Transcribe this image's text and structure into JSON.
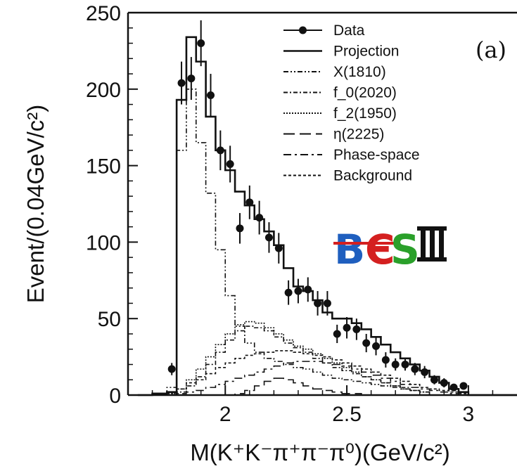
{
  "chart_data": {
    "type": "line",
    "panel_label": "(a)",
    "ylabel": "Event/(0.04GeV/c²)",
    "xlabel": "M(K⁺K⁻π⁺π⁻π⁰)(GeV/c²)",
    "xlim": [
      1.6,
      3.2
    ],
    "ylim": [
      0,
      250
    ],
    "x_ticks": [
      2,
      2.5,
      3
    ],
    "x_tick_labels": [
      "2",
      "2.5",
      "3"
    ],
    "y_ticks": [
      0,
      50,
      100,
      150,
      200,
      250
    ],
    "y_tick_labels": [
      "0",
      "50",
      "100",
      "150",
      "200",
      "250"
    ],
    "bin_width": 0.04,
    "logo": "BESIII",
    "legend": {
      "placement": "top-right",
      "entries": [
        "Data",
        "Projection",
        "X(1810)",
        "f_0(2020)",
        "f_2(1950)",
        "η(2225)",
        "Phase-space",
        "Background"
      ]
    },
    "data_points": {
      "name": "Data",
      "x": [
        1.78,
        1.82,
        1.86,
        1.9,
        1.94,
        1.98,
        2.02,
        2.06,
        2.1,
        2.14,
        2.18,
        2.22,
        2.26,
        2.3,
        2.34,
        2.38,
        2.42,
        2.46,
        2.5,
        2.54,
        2.58,
        2.62,
        2.66,
        2.7,
        2.74,
        2.78,
        2.82,
        2.86,
        2.9,
        2.94,
        2.98
      ],
      "y": [
        17,
        204,
        207,
        230,
        196,
        160,
        151,
        109,
        126,
        116,
        103,
        96,
        67,
        68,
        69,
        60,
        60,
        40,
        44,
        43,
        34,
        32,
        23,
        20,
        20,
        17,
        15,
        10,
        8,
        5,
        6
      ],
      "err": [
        4,
        14,
        14,
        15,
        14,
        13,
        12,
        10,
        11,
        11,
        10,
        10,
        8,
        8,
        8,
        8,
        8,
        6,
        7,
        7,
        6,
        6,
        5,
        4,
        4,
        4,
        4,
        3,
        3,
        2,
        2
      ]
    },
    "series": [
      {
        "name": "Projection",
        "style": "solid",
        "edges": [
          1.64,
          1.7,
          1.76,
          1.8,
          1.84,
          1.88,
          1.92,
          1.96,
          2.0,
          2.04,
          2.08,
          2.12,
          2.16,
          2.2,
          2.24,
          2.28,
          2.32,
          2.36,
          2.4,
          2.44,
          2.48,
          2.52,
          2.56,
          2.6,
          2.64,
          2.68,
          2.72,
          2.76,
          2.8,
          2.84,
          2.88,
          2.92,
          2.96,
          3.0,
          3.2
        ],
        "values": [
          0,
          1,
          2,
          193,
          234,
          218,
          182,
          160,
          147,
          133,
          124,
          115,
          107,
          98,
          83,
          71,
          68,
          62,
          54,
          50,
          50,
          47,
          43,
          38,
          33,
          28,
          24,
          20,
          16,
          12,
          8,
          4,
          2,
          0
        ]
      },
      {
        "name": "X(1810)",
        "style": "dashdotdot",
        "edges": [
          1.76,
          1.8,
          1.84,
          1.88,
          1.92,
          1.96,
          2.0,
          2.04,
          2.08,
          2.12,
          2.16,
          2.2,
          2.24,
          2.28,
          2.32,
          2.36,
          2.4,
          2.44,
          2.48,
          2.52,
          2.56,
          2.6,
          2.64,
          2.68,
          2.72,
          2.76,
          2.8,
          2.84
        ],
        "values": [
          5,
          160,
          200,
          165,
          132,
          95,
          65,
          45,
          34,
          28,
          24,
          22,
          20,
          18,
          17,
          15,
          13,
          11,
          10,
          9,
          8,
          7,
          6,
          5,
          4,
          3,
          2
        ]
      },
      {
        "name": "f_0(2020)",
        "style": "dashdot",
        "edges": [
          1.76,
          1.8,
          1.84,
          1.88,
          1.92,
          1.96,
          2.0,
          2.04,
          2.08,
          2.12,
          2.16,
          2.2,
          2.24,
          2.28,
          2.32,
          2.36,
          2.4,
          2.44,
          2.48,
          2.52,
          2.56,
          2.6,
          2.64,
          2.68,
          2.72,
          2.76,
          2.8,
          2.84
        ],
        "values": [
          1,
          2,
          6,
          12,
          20,
          28,
          36,
          42,
          45,
          44,
          42,
          38,
          34,
          31,
          28,
          24,
          21,
          18,
          16,
          14,
          12,
          10,
          8,
          6,
          5,
          3,
          2
        ]
      },
      {
        "name": "f_2(1950)",
        "style": "dotted",
        "edges": [
          1.76,
          1.8,
          1.84,
          1.88,
          1.92,
          1.96,
          2.0,
          2.04,
          2.08,
          2.12,
          2.16,
          2.2,
          2.24,
          2.28,
          2.32,
          2.36,
          2.4,
          2.44,
          2.48,
          2.52,
          2.56,
          2.6,
          2.64,
          2.68,
          2.72,
          2.76,
          2.8,
          2.84
        ],
        "values": [
          1,
          4,
          10,
          17,
          25,
          33,
          40,
          46,
          48,
          47,
          44,
          40,
          36,
          32,
          30,
          27,
          24,
          21,
          18,
          15,
          12,
          10,
          8,
          6,
          4,
          3,
          2
        ]
      },
      {
        "name": "η(2225)",
        "style": "longdash",
        "edges": [
          2.0,
          2.04,
          2.08,
          2.12,
          2.16,
          2.2,
          2.24,
          2.28,
          2.32,
          2.36,
          2.4,
          2.44,
          2.48,
          2.52,
          2.56,
          2.6,
          2.64
        ],
        "values": [
          0,
          1,
          3,
          6,
          9,
          11,
          10,
          8,
          6,
          4,
          3,
          2,
          1,
          1,
          0,
          0
        ]
      },
      {
        "name": "Phase-space",
        "style": "dashdash",
        "edges": [
          1.76,
          1.8,
          1.84,
          1.88,
          1.92,
          1.96,
          2.0,
          2.04,
          2.08,
          2.12,
          2.16,
          2.2,
          2.24,
          2.28,
          2.32,
          2.36,
          2.4,
          2.44,
          2.48,
          2.52,
          2.56,
          2.6,
          2.64,
          2.68,
          2.72,
          2.76,
          2.8,
          2.84,
          2.88,
          2.92,
          2.96,
          3.0
        ],
        "values": [
          0,
          1,
          2,
          3,
          5,
          7,
          9,
          11,
          13,
          15,
          17,
          19,
          21,
          22,
          22,
          22,
          21,
          20,
          19,
          17,
          15,
          13,
          11,
          9,
          7,
          5,
          4,
          3,
          2,
          1,
          0
        ]
      },
      {
        "name": "Background",
        "style": "shortdash",
        "edges": [
          1.76,
          1.8,
          1.84,
          1.88,
          1.92,
          1.96,
          2.0,
          2.04,
          2.08,
          2.12,
          2.16,
          2.2,
          2.24,
          2.28,
          2.32,
          2.36,
          2.4,
          2.44,
          2.48,
          2.52,
          2.56,
          2.6,
          2.64,
          2.68,
          2.72,
          2.76,
          2.8,
          2.84,
          2.88,
          2.92,
          2.96,
          3.0
        ],
        "values": [
          0,
          4,
          8,
          10,
          14,
          18,
          21,
          24,
          26,
          27,
          28,
          29,
          29,
          28,
          27,
          26,
          25,
          23,
          21,
          19,
          17,
          15,
          13,
          11,
          9,
          7,
          5,
          4,
          3,
          2,
          1
        ]
      }
    ]
  }
}
